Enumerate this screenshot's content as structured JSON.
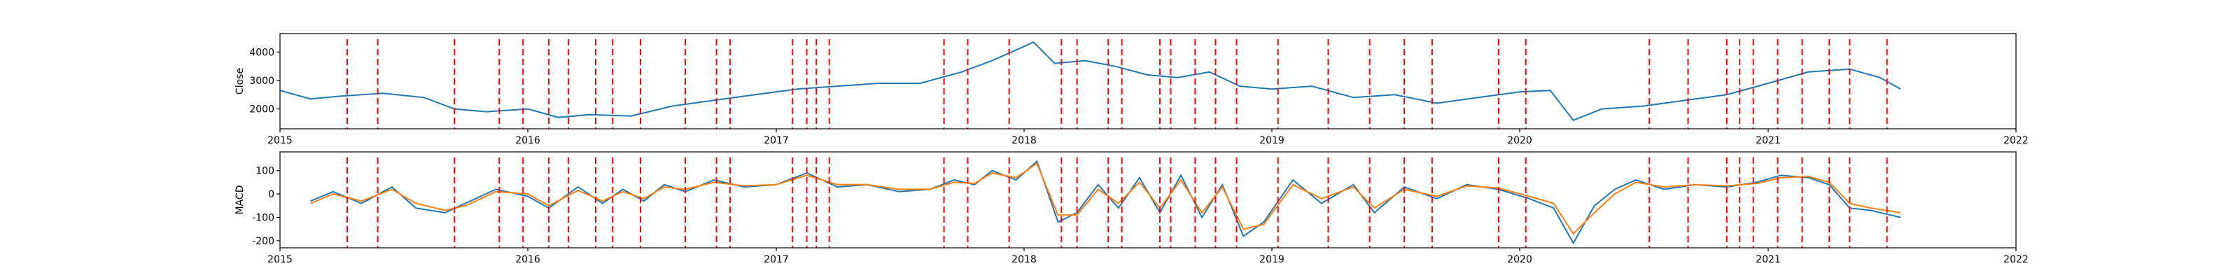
{
  "colors": {
    "close": "#1f77b4",
    "macd": "#1f77b4",
    "signal": "#ff7f0e",
    "event": "#ff0000",
    "axes": "#000000"
  },
  "chart_data": [
    {
      "type": "line",
      "ylabel": "Close",
      "xlim": [
        "2015-01-01",
        "2022-01-01"
      ],
      "ylim": [
        1300,
        4650
      ],
      "yticks": [
        2000,
        3000,
        4000
      ],
      "xticks": [
        "2015",
        "2016",
        "2017",
        "2018",
        "2019",
        "2020",
        "2021",
        "2022"
      ],
      "series": [
        {
          "color": "#1f77b4",
          "x": [
            "2015-01-01",
            "2015-02-15",
            "2015-04-01",
            "2015-06-01",
            "2015-08-01",
            "2015-09-15",
            "2015-11-01",
            "2016-01-01",
            "2016-02-15",
            "2016-04-01",
            "2016-06-01",
            "2016-08-01",
            "2016-10-01",
            "2016-12-01",
            "2017-02-01",
            "2017-04-01",
            "2017-06-01",
            "2017-08-01",
            "2017-10-01",
            "2017-11-15",
            "2018-01-01",
            "2018-01-15",
            "2018-02-15",
            "2018-04-01",
            "2018-05-15",
            "2018-07-01",
            "2018-08-15",
            "2018-10-01",
            "2018-11-15",
            "2019-01-01",
            "2019-03-01",
            "2019-05-01",
            "2019-07-01",
            "2019-09-01",
            "2019-11-01",
            "2020-01-01",
            "2020-02-15",
            "2020-03-20",
            "2020-05-01",
            "2020-07-01",
            "2020-09-01",
            "2020-11-01",
            "2021-01-01",
            "2021-03-01",
            "2021-05-01",
            "2021-06-15",
            "2021-07-15"
          ],
          "values": [
            2650,
            2350,
            2450,
            2550,
            2400,
            2000,
            1900,
            2000,
            1700,
            1800,
            1750,
            2100,
            2300,
            2500,
            2700,
            2800,
            2900,
            2900,
            3300,
            3700,
            4200,
            4350,
            3600,
            3700,
            3500,
            3200,
            3100,
            3300,
            2800,
            2700,
            2800,
            2400,
            2500,
            2200,
            2400,
            2600,
            2650,
            1600,
            2000,
            2100,
            2300,
            2500,
            2900,
            3300,
            3400,
            3100,
            2700
          ]
        }
      ]
    },
    {
      "type": "line",
      "ylabel": "MACD",
      "xlim": [
        "2015-01-01",
        "2022-01-01"
      ],
      "ylim": [
        -230,
        180
      ],
      "yticks": [
        -200,
        -100,
        0,
        100
      ],
      "xticks": [
        "2015",
        "2016",
        "2017",
        "2018",
        "2019",
        "2020",
        "2021",
        "2022"
      ],
      "series": [
        {
          "color": "#1f77b4",
          "x": [
            "2015-02-15",
            "2015-03-20",
            "2015-05-01",
            "2015-06-15",
            "2015-07-20",
            "2015-09-01",
            "2015-10-01",
            "2015-11-15",
            "2016-01-01",
            "2016-02-01",
            "2016-03-15",
            "2016-04-20",
            "2016-05-20",
            "2016-06-20",
            "2016-07-20",
            "2016-08-20",
            "2016-10-01",
            "2016-11-15",
            "2017-01-01",
            "2017-02-15",
            "2017-04-01",
            "2017-05-15",
            "2017-07-01",
            "2017-08-15",
            "2017-09-20",
            "2017-10-20",
            "2017-11-15",
            "2017-12-20",
            "2018-01-20",
            "2018-02-20",
            "2018-03-20",
            "2018-04-20",
            "2018-05-20",
            "2018-06-20",
            "2018-07-20",
            "2018-08-20",
            "2018-09-20",
            "2018-10-20",
            "2018-11-20",
            "2018-12-20",
            "2019-02-01",
            "2019-03-15",
            "2019-05-01",
            "2019-06-01",
            "2019-07-15",
            "2019-09-01",
            "2019-10-15",
            "2019-12-01",
            "2020-01-15",
            "2020-02-20",
            "2020-03-20",
            "2020-04-20",
            "2020-05-20",
            "2020-06-20",
            "2020-08-01",
            "2020-09-15",
            "2020-11-01",
            "2020-12-15",
            "2021-01-20",
            "2021-03-01",
            "2021-04-01",
            "2021-05-01",
            "2021-06-01",
            "2021-07-15"
          ],
          "values": [
            -30,
            10,
            -40,
            30,
            -60,
            -80,
            -40,
            20,
            -10,
            -60,
            30,
            -40,
            20,
            -30,
            40,
            10,
            60,
            30,
            40,
            90,
            30,
            40,
            10,
            20,
            60,
            40,
            100,
            60,
            140,
            -120,
            -80,
            40,
            -60,
            70,
            -80,
            80,
            -100,
            40,
            -180,
            -120,
            60,
            -40,
            40,
            -80,
            30,
            -20,
            40,
            20,
            -20,
            -60,
            -210,
            -50,
            20,
            60,
            20,
            40,
            30,
            50,
            80,
            70,
            40,
            -60,
            -70,
            -100
          ]
        },
        {
          "color": "#ff7f0e",
          "x": [
            "2015-02-15",
            "2015-03-20",
            "2015-05-01",
            "2015-06-15",
            "2015-07-20",
            "2015-09-01",
            "2015-10-01",
            "2015-11-15",
            "2016-01-01",
            "2016-02-01",
            "2016-03-15",
            "2016-04-20",
            "2016-05-20",
            "2016-06-20",
            "2016-07-20",
            "2016-08-20",
            "2016-10-01",
            "2016-11-15",
            "2017-01-01",
            "2017-02-15",
            "2017-04-01",
            "2017-05-15",
            "2017-07-01",
            "2017-08-15",
            "2017-09-20",
            "2017-10-20",
            "2017-11-15",
            "2017-12-20",
            "2018-01-20",
            "2018-02-20",
            "2018-03-20",
            "2018-04-20",
            "2018-05-20",
            "2018-06-20",
            "2018-07-20",
            "2018-08-20",
            "2018-09-20",
            "2018-10-20",
            "2018-11-20",
            "2018-12-20",
            "2019-02-01",
            "2019-03-15",
            "2019-05-01",
            "2019-06-01",
            "2019-07-15",
            "2019-09-01",
            "2019-10-15",
            "2019-12-01",
            "2020-01-15",
            "2020-02-20",
            "2020-03-20",
            "2020-04-20",
            "2020-05-20",
            "2020-06-20",
            "2020-08-01",
            "2020-09-15",
            "2020-11-01",
            "2020-12-15",
            "2021-01-20",
            "2021-03-01",
            "2021-04-01",
            "2021-05-01",
            "2021-06-01",
            "2021-07-15"
          ],
          "values": [
            -40,
            0,
            -30,
            20,
            -40,
            -70,
            -50,
            10,
            0,
            -50,
            15,
            -30,
            10,
            -20,
            30,
            20,
            50,
            35,
            40,
            80,
            40,
            40,
            20,
            20,
            50,
            45,
            90,
            70,
            130,
            -90,
            -90,
            20,
            -40,
            50,
            -60,
            60,
            -80,
            30,
            -150,
            -130,
            40,
            -20,
            30,
            -60,
            20,
            -10,
            35,
            25,
            -10,
            -40,
            -170,
            -80,
            0,
            50,
            30,
            40,
            35,
            45,
            70,
            75,
            50,
            -40,
            -60,
            -80
          ]
        }
      ]
    }
  ],
  "event_dates": [
    "2015-04-10",
    "2015-05-25",
    "2015-09-15",
    "2015-11-20",
    "2015-12-25",
    "2016-02-01",
    "2016-03-01",
    "2016-04-10",
    "2016-05-05",
    "2016-06-15",
    "2016-08-20",
    "2016-10-05",
    "2016-10-25",
    "2017-01-25",
    "2017-02-15",
    "2017-03-01",
    "2017-03-20",
    "2017-09-05",
    "2017-10-10",
    "2017-12-10",
    "2018-02-25",
    "2018-03-20",
    "2018-05-05",
    "2018-05-25",
    "2018-07-20",
    "2018-08-05",
    "2018-09-10",
    "2018-10-10",
    "2018-11-10",
    "2019-01-10",
    "2019-03-25",
    "2019-05-25",
    "2019-07-15",
    "2019-08-25",
    "2019-12-01",
    "2020-01-10",
    "2020-07-10",
    "2020-09-05",
    "2020-11-01",
    "2020-11-20",
    "2020-12-10",
    "2021-01-15",
    "2021-02-20",
    "2021-04-01",
    "2021-05-01",
    "2021-06-25"
  ]
}
